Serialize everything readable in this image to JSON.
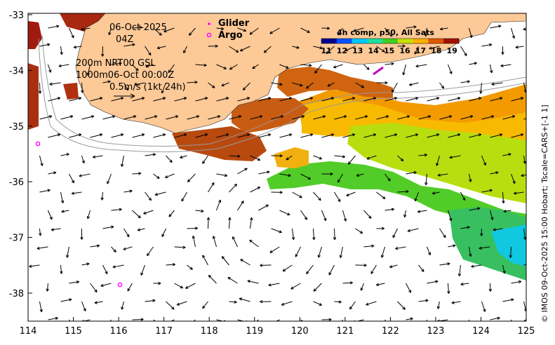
{
  "map": {
    "lon_ticks": [
      "114",
      "115",
      "116",
      "117",
      "118",
      "119",
      "120",
      "121",
      "122",
      "123",
      "124",
      "125"
    ],
    "lat_ticks": [
      "-33",
      "-34",
      "-35",
      "-36",
      "-37",
      "-38"
    ],
    "land_color": "#fcc997"
  },
  "annotations": {
    "date": "06-Oct-2025",
    "hour": "04Z",
    "line1": "200m  NRT00 GSL",
    "line2": "1000m06-Oct 00:00Z",
    "scale": "0.5m/s (1kt 24h)"
  },
  "key": {
    "glider": "Glider",
    "argo": "Argo",
    "glider_color": "#ff00ff",
    "argo_color": "#ff00ff"
  },
  "legend": {
    "title": "4h comp, p50, All Sats",
    "labels": [
      "11",
      "12",
      "13",
      "14",
      "15",
      "16",
      "17",
      "18",
      "19"
    ],
    "colors": [
      "#00008f",
      "#0050ff",
      "#00c8ff",
      "#20e0a0",
      "#40d020",
      "#c8e000",
      "#ffb000",
      "#e05800",
      "#a01000"
    ]
  },
  "credit": "© IMOS 09-Oct-2025 15:00 Hobart; Tscale=CARS+[-1 1]"
}
